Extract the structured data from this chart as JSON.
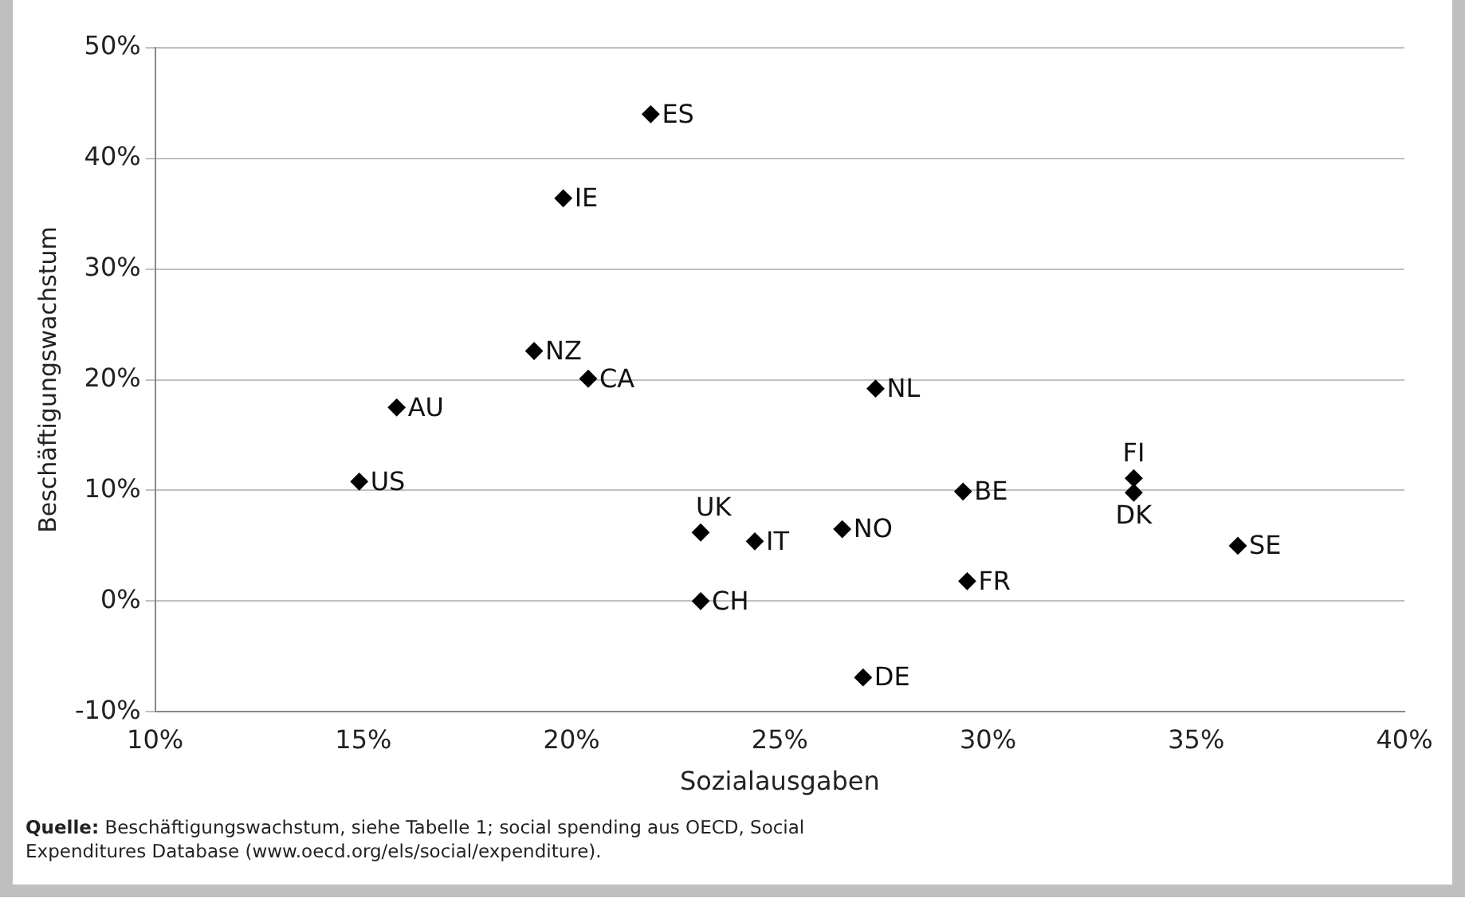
{
  "chart_data": {
    "type": "scatter",
    "xlabel": "Sozialausgaben",
    "ylabel": "Beschäftigungswachstum",
    "x": [
      21.9,
      19.8,
      19.1,
      20.4,
      15.8,
      14.9,
      27.3,
      23.1,
      24.4,
      26.5,
      23.1,
      29.4,
      29.5,
      33.5,
      33.5,
      36.0,
      27.0
    ],
    "values": [
      44,
      36.4,
      22.6,
      20.1,
      17.5,
      10.8,
      19.2,
      6.2,
      5.4,
      6.5,
      0,
      9.9,
      1.8,
      11.1,
      9.8,
      5.0,
      -6.9
    ],
    "value_labels": [
      "ES",
      "IE",
      "NZ",
      "CA",
      "AU",
      "US",
      "NL",
      "UK",
      "IT",
      "NO",
      "CH",
      "BE",
      "FR",
      "FI",
      "DK",
      "SE",
      "DE"
    ],
    "color": "#000000",
    "marker": "diamond",
    "xlim": [
      10,
      40
    ],
    "xticks": [
      {
        "value": 10,
        "label": "10%"
      },
      {
        "value": 15,
        "label": "15%"
      },
      {
        "value": 20,
        "label": "20%"
      },
      {
        "value": 25,
        "label": "25%"
      },
      {
        "value": 30,
        "label": "30%"
      },
      {
        "value": 35,
        "label": "35%"
      },
      {
        "value": 40,
        "label": "40%"
      }
    ],
    "ylim": [
      -10,
      50
    ],
    "yticks": [
      {
        "value": -10,
        "label": "-10%"
      },
      {
        "value": 0,
        "label": "0%"
      },
      {
        "value": 10,
        "label": "10%"
      },
      {
        "value": 20,
        "label": "20%"
      },
      {
        "value": 30,
        "label": "30%"
      },
      {
        "value": 40,
        "label": "40%"
      },
      {
        "value": 50,
        "label": "50%"
      }
    ],
    "grid": "y",
    "legend": false,
    "annotations": [
      "Quelle: Beschäftigungswachstum, siehe Tabelle 1; social spending aus OECD, Social Expenditures Database (www.oecd.org/els/social/expenditure)."
    ]
  }
}
